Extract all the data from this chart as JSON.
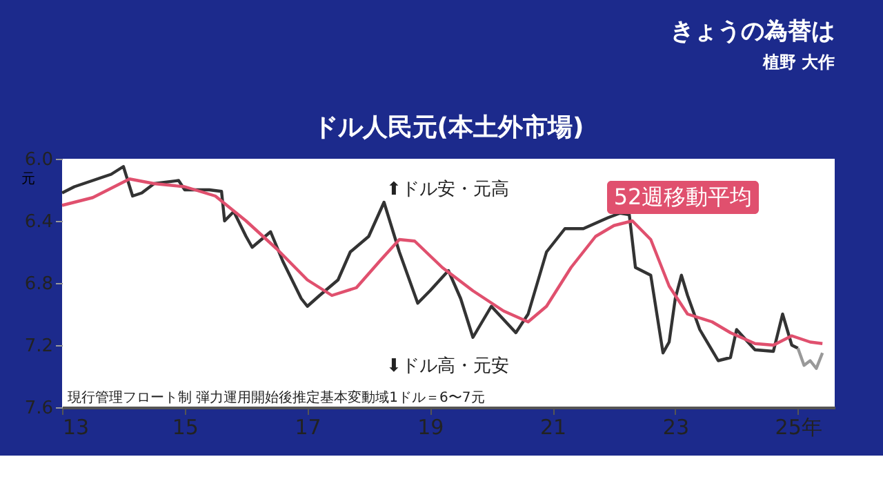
{
  "chart_data": {
    "type": "line",
    "title": "ドル人民元(本土外市場)",
    "ylabel": "元",
    "xlim": [
      13,
      25.6
    ],
    "ylim": [
      7.6,
      6.0
    ],
    "xticks": [
      13,
      15,
      17,
      19,
      21,
      23,
      {
        "value": 25,
        "label": "25年"
      }
    ],
    "yticks": [
      {
        "value": 6.0,
        "label": "6.0"
      },
      6.4,
      6.8,
      7.2,
      7.6
    ],
    "grid": false,
    "line_style": "solid",
    "series": [
      {
        "color": "#333333",
        "x": [
          13.0,
          13.2,
          13.5,
          13.8,
          14.0,
          14.15,
          14.3,
          14.5,
          14.9,
          15.0,
          15.4,
          15.6,
          15.65,
          15.8,
          16.0,
          16.1,
          16.4,
          16.6,
          16.9,
          17.0,
          17.2,
          17.5,
          17.7,
          18.0,
          18.25,
          18.5,
          18.8,
          19.0,
          19.3,
          19.5,
          19.7,
          20.0,
          20.4,
          20.6,
          20.9,
          21.2,
          21.5,
          21.9,
          22.1,
          22.25,
          22.35,
          22.6,
          22.8,
          22.9,
          23.0,
          23.1,
          23.2,
          23.4,
          23.7,
          23.9,
          24.0,
          24.3,
          24.6,
          24.75,
          24.9,
          25.0
        ],
        "values": [
          6.22,
          6.18,
          6.14,
          6.1,
          6.05,
          6.24,
          6.22,
          6.16,
          6.14,
          6.2,
          6.2,
          6.21,
          6.4,
          6.34,
          6.5,
          6.57,
          6.47,
          6.66,
          6.9,
          6.95,
          6.88,
          6.78,
          6.6,
          6.5,
          6.28,
          6.6,
          6.93,
          6.85,
          6.72,
          6.9,
          7.15,
          6.95,
          7.12,
          7.0,
          6.6,
          6.45,
          6.45,
          6.38,
          6.35,
          6.36,
          6.7,
          6.75,
          7.25,
          7.18,
          6.9,
          6.75,
          6.88,
          7.1,
          7.3,
          7.28,
          7.1,
          7.23,
          7.24,
          7.0,
          7.2,
          7.22
        ]
      },
      {
        "color": "#999999",
        "x": [
          25.0,
          25.1,
          25.2,
          25.3,
          25.4
        ],
        "values": [
          7.22,
          7.33,
          7.3,
          7.35,
          7.25
        ]
      },
      {
        "name": "52週移動平均",
        "color": "#e0506e",
        "x": [
          13.0,
          13.5,
          14.1,
          14.5,
          15.0,
          15.5,
          16.0,
          16.5,
          17.0,
          17.4,
          17.8,
          18.2,
          18.5,
          18.75,
          19.2,
          19.7,
          20.2,
          20.6,
          20.9,
          21.3,
          21.7,
          22.0,
          22.3,
          22.6,
          22.9,
          23.2,
          23.6,
          23.9,
          24.3,
          24.6,
          24.9,
          25.2,
          25.4
        ],
        "values": [
          6.3,
          6.25,
          6.13,
          6.16,
          6.18,
          6.24,
          6.4,
          6.58,
          6.78,
          6.88,
          6.83,
          6.65,
          6.52,
          6.53,
          6.7,
          6.85,
          6.98,
          7.05,
          6.95,
          6.7,
          6.5,
          6.43,
          6.4,
          6.52,
          6.82,
          7.0,
          7.05,
          7.12,
          7.19,
          7.2,
          7.14,
          7.18,
          7.19
        ]
      }
    ],
    "annotations": [
      "きょうの為替は",
      "植野 大作",
      "⬆ドル安・元高",
      "⬇ドル高・元安",
      "現行管理フロート制 弾力運用開始後推定基本変動域1ドル＝6〜7元"
    ]
  }
}
